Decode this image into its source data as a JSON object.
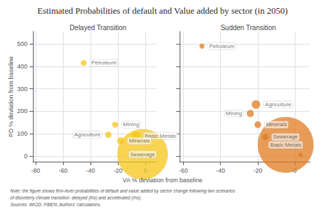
{
  "chart_data": [
    {
      "type": "scatter",
      "title": "Estimated Probabilities of default and Value added by sector (in 2050)",
      "subtitle": "Delayed Transition",
      "xlabel": "VA % deviation from baseline",
      "ylabel": "PD % deviation from baseline",
      "note": "Note: the figure shows firm-level probabilities of default and value added by sector change following two scenarios\nof disorderly climate transition: delayed (lhs) and accelerated (rhs).\nSources: WIOD, FIBEN, Authors' calculations.",
      "labels": [
        "Petroleum",
        "Mining",
        "Agriculture",
        "Basic Metals",
        "Minerals",
        "Sewerage"
      ],
      "x": [
        -45,
        -22,
        -27,
        -7,
        -18,
        -2
      ],
      "values": [
        415,
        140,
        95,
        90,
        68,
        8
      ],
      "sizes": [
        60,
        60,
        70,
        130,
        90,
        4500
      ],
      "color": "#f5c518",
      "xlim": [
        -82,
        8
      ],
      "ylim": [
        -25,
        555
      ],
      "xticks": [
        -80,
        -60,
        -40,
        -20,
        0
      ],
      "yticks": [
        0,
        100,
        200,
        300,
        400,
        500
      ],
      "grid": true
    },
    {
      "type": "scatter",
      "subtitle": "Sudden Transition",
      "labels": [
        null,
        "Petroleum",
        "Mining",
        "Agriculture",
        "Basic Metals",
        "Minerals",
        "Sewerage"
      ],
      "x": [
        3,
        -50,
        -24,
        -21,
        -5,
        -20,
        -16
      ],
      "values": [
        5,
        490,
        190,
        230,
        50,
        140,
        85
      ],
      "sizes": [
        35,
        45,
        90,
        130,
        5500,
        80,
        65
      ],
      "color": "#e07b20",
      "xlim": [
        -62,
        8
      ],
      "ylim": [
        -25,
        555
      ],
      "xticks": [
        -60,
        -40,
        -20,
        0
      ],
      "yticks": [
        0,
        100,
        200,
        300,
        400,
        500
      ],
      "grid": true,
      "tick_labels": "x"
    }
  ]
}
